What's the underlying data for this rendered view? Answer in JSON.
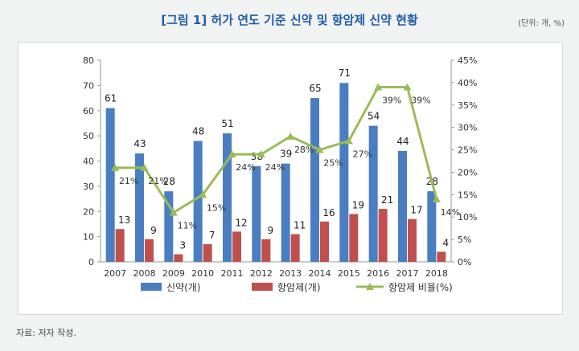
{
  "header": {
    "title": "[그림 1] 허가 연도 기준 신약 및 항암제 신약 현황",
    "unit": "(단위: 개, %)"
  },
  "footer": {
    "source": "자료: 저자 작성."
  },
  "colors": {
    "new_drug": "#4a7ec0",
    "anticancer": "#c0504d",
    "ratio": "#9bbb59"
  },
  "chart_data": {
    "type": "bar",
    "categories": [
      "2007",
      "2008",
      "2009",
      "2010",
      "2011",
      "2012",
      "2013",
      "2014",
      "2015",
      "2016",
      "2017",
      "2018"
    ],
    "series": [
      {
        "name": "신약(개)",
        "type": "bar",
        "axis": "left",
        "values": [
          61,
          43,
          28,
          48,
          51,
          38,
          39,
          65,
          71,
          54,
          44,
          28
        ],
        "labels": [
          "61",
          "43",
          "28",
          "48",
          "51",
          "38",
          "39",
          "65",
          "71",
          "54",
          "44",
          "28"
        ]
      },
      {
        "name": "항암제(개)",
        "type": "bar",
        "axis": "left",
        "values": [
          13,
          9,
          3,
          7,
          12,
          9,
          11,
          16,
          19,
          21,
          17,
          4
        ],
        "labels": [
          "13",
          "9",
          "3",
          "7",
          "12",
          "9",
          "11",
          "16",
          "19",
          "21",
          "17",
          "4"
        ]
      },
      {
        "name": "항암제 비율(%)",
        "type": "line",
        "axis": "right",
        "values": [
          21,
          21,
          11,
          15,
          24,
          24,
          28,
          25,
          27,
          39,
          39,
          14
        ],
        "labels": [
          "21%",
          "21%",
          "11%",
          "15%",
          "24%",
          "24%",
          "28%",
          "25%",
          "27%",
          "39%",
          "39%",
          "14%"
        ]
      }
    ],
    "y_left": {
      "min": 0,
      "max": 80,
      "ticks": [
        "0",
        "10",
        "20",
        "30",
        "40",
        "50",
        "60",
        "70",
        "80"
      ]
    },
    "y_right": {
      "min": 0,
      "max": 45,
      "ticks": [
        "0%",
        "5%",
        "10%",
        "15%",
        "20%",
        "25%",
        "30%",
        "35%",
        "40%",
        "45%"
      ]
    },
    "grid": false,
    "legend_position": "bottom"
  }
}
